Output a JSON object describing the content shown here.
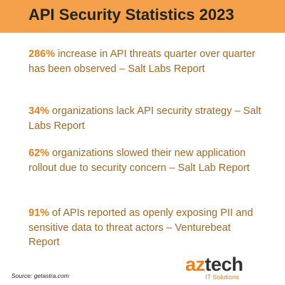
{
  "title": "API Security Statistics 2023",
  "colors": {
    "header_bg": "#f5a04a",
    "highlight": "#e0801f",
    "body_text": "#9a6a2a",
    "logo_accent": "#ef7f1a",
    "logo_dark": "#333333"
  },
  "stats": [
    {
      "percent": "286%",
      "text": " increase in API threats quarter over quarter has been observed – Salt Labs Report"
    },
    {
      "percent": "34%",
      "text": " organizations lack API security strategy – Salt Labs Report"
    },
    {
      "percent": "62%",
      "text": " organizations slowed their new application rollout due to security concern – Salt Lab Report"
    },
    {
      "percent": "91%",
      "text": " of APIs reported as openly exposing PII and sensitive data to threat actors – Venturebeat Report"
    }
  ],
  "source": "Source: getastra.com",
  "logo": {
    "part1": "az",
    "part2": "tech",
    "subtitle": "IT Solutions"
  }
}
